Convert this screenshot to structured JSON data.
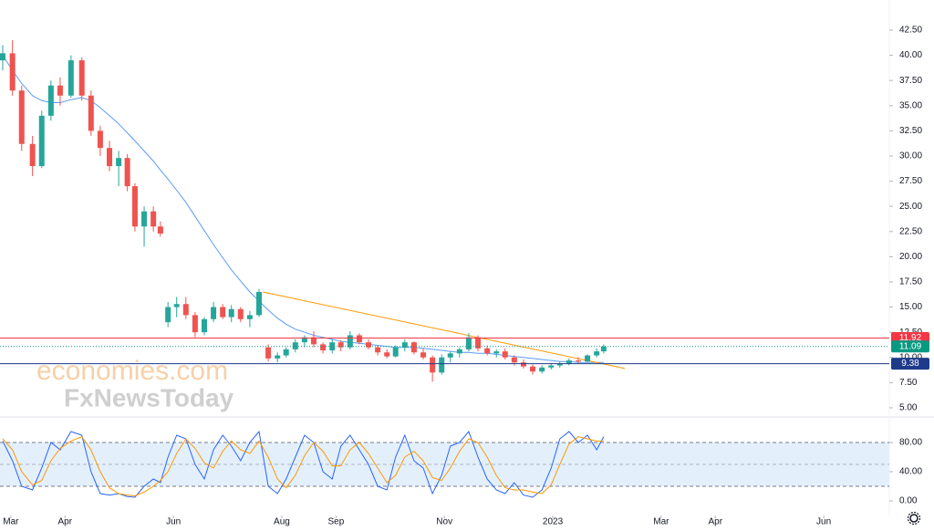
{
  "chart_data": [
    {
      "type": "candlestick",
      "x": [
        2.85,
        3.03,
        3.2,
        3.4,
        3.57,
        3.74,
        3.91,
        4.11,
        4.31,
        4.48,
        4.65,
        4.82,
        4.99,
        5.15,
        5.29,
        5.46,
        5.63,
        5.76,
        5.9,
        6.06,
        6.23,
        6.4,
        6.57,
        6.74,
        6.91,
        7.07,
        7.24,
        7.41,
        7.58,
        7.75,
        7.92,
        8.08,
        8.25,
        8.42,
        8.59,
        8.76,
        8.93,
        9.09,
        9.26,
        9.43,
        9.6,
        9.77,
        9.94,
        10.1,
        10.27,
        10.44,
        10.61,
        10.78,
        10.95,
        11.11,
        11.28,
        11.45,
        11.62,
        11.79,
        11.96,
        12.12,
        12.29,
        12.46,
        12.63,
        12.8,
        12.97,
        13.13,
        13.3,
        13.47,
        13.64,
        13.81,
        13.94
      ],
      "open": [
        39.5,
        40.2,
        36.5,
        31.2,
        29.0,
        34.0,
        37.0,
        36.0,
        39.5,
        36.0,
        32.5,
        30.8,
        29.0,
        29.8,
        27.0,
        23.0,
        24.5,
        23.0,
        13.5,
        15.0,
        15.3,
        14.2,
        12.5,
        13.8,
        15.0,
        14.0,
        14.8,
        13.8,
        14.2,
        11.0,
        9.9,
        10.2,
        10.8,
        11.5,
        12.0,
        11.3,
        10.7,
        11.5,
        11.0,
        12.2,
        11.5,
        11.0,
        10.5,
        10.1,
        11.0,
        11.5,
        10.5,
        10.0,
        8.5,
        10.0,
        10.4,
        10.8,
        12.0,
        10.9,
        10.4,
        10.6,
        10.0,
        9.5,
        9.1,
        8.6,
        9.0,
        9.2,
        9.4,
        9.7,
        9.6,
        10.2,
        10.6
      ],
      "high": [
        41.0,
        41.5,
        37.0,
        32.0,
        34.5,
        37.5,
        37.8,
        40.0,
        39.8,
        36.5,
        33.0,
        31.5,
        30.5,
        30.2,
        27.3,
        25.0,
        25.0,
        23.5,
        15.5,
        16.0,
        16.0,
        14.5,
        14.0,
        15.5,
        15.3,
        15.2,
        15.0,
        14.6,
        16.8,
        11.3,
        10.5,
        11.0,
        11.8,
        12.2,
        12.6,
        11.5,
        11.8,
        11.7,
        12.6,
        12.4,
        11.8,
        11.2,
        10.8,
        11.2,
        11.8,
        11.6,
        10.9,
        10.2,
        10.3,
        10.6,
        11.0,
        12.4,
        12.2,
        11.2,
        10.8,
        10.9,
        10.2,
        9.8,
        9.3,
        9.2,
        9.4,
        9.6,
        9.9,
        10.0,
        10.3,
        10.9,
        11.3
      ],
      "low": [
        38.5,
        36.0,
        30.5,
        28.0,
        28.8,
        33.5,
        35.0,
        35.8,
        35.5,
        32.0,
        30.0,
        28.5,
        27.0,
        26.5,
        22.5,
        21.0,
        22.5,
        22.0,
        13.0,
        14.0,
        13.8,
        12.0,
        12.2,
        13.5,
        13.8,
        13.5,
        13.5,
        13.0,
        14.0,
        9.6,
        9.5,
        10.0,
        10.5,
        11.0,
        11.0,
        10.4,
        10.4,
        10.6,
        10.8,
        11.3,
        10.8,
        10.2,
        9.9,
        10.0,
        10.6,
        10.3,
        9.8,
        7.6,
        8.3,
        9.5,
        10.0,
        10.6,
        10.6,
        10.2,
        10.0,
        9.8,
        9.2,
        8.9,
        8.3,
        8.4,
        8.8,
        9.0,
        9.2,
        9.4,
        9.5,
        10.0,
        10.4
      ],
      "close": [
        40.2,
        36.5,
        31.2,
        29.0,
        34.0,
        37.0,
        36.0,
        39.5,
        36.0,
        32.5,
        30.8,
        29.0,
        29.8,
        27.0,
        23.0,
        24.5,
        23.0,
        22.3,
        15.0,
        15.3,
        14.2,
        12.5,
        13.8,
        15.0,
        14.0,
        14.8,
        13.8,
        14.2,
        16.5,
        9.9,
        10.2,
        10.8,
        11.5,
        12.0,
        11.3,
        10.7,
        11.5,
        11.0,
        12.2,
        11.5,
        11.0,
        10.5,
        10.1,
        11.0,
        11.5,
        10.5,
        10.0,
        8.5,
        10.0,
        10.4,
        10.8,
        12.0,
        10.9,
        10.4,
        10.6,
        10.0,
        9.5,
        9.1,
        8.6,
        9.0,
        9.2,
        9.4,
        9.7,
        9.6,
        10.2,
        10.6,
        11.09
      ],
      "up_color": "#26a69a",
      "down_color": "#ef5350",
      "moving_average": {
        "color": "#5b9cf6",
        "values": [
          40.0,
          38.5,
          37.2,
          36.0,
          35.5,
          35.3,
          35.3,
          35.6,
          35.8,
          35.5,
          34.8,
          34.0,
          33.2,
          32.3,
          31.5,
          30.5,
          29.5,
          28.6,
          27.7,
          26.6,
          25.4,
          24.0,
          22.6,
          21.2,
          19.9,
          18.7,
          17.6,
          16.5,
          15.6,
          14.7,
          13.9,
          13.3,
          12.8,
          12.5,
          12.2,
          12.0,
          11.8,
          11.6,
          11.5,
          11.4,
          11.3,
          11.2,
          11.1,
          11.0,
          11.0,
          11.0,
          10.9,
          10.8,
          10.7,
          10.6,
          10.5,
          10.5,
          10.4,
          10.4,
          10.3,
          10.2,
          10.1,
          10.0,
          9.9,
          9.8,
          9.7,
          9.6,
          9.6,
          9.5,
          9.5,
          9.5,
          9.5
        ]
      },
      "trendline": {
        "color": "#ff9800",
        "x": [
          7.65,
          14.33
        ],
        "values": [
          16.5,
          8.9
        ]
      },
      "levels": [
        {
          "value": 11.92,
          "color": "#f23645",
          "style": "solid"
        },
        {
          "value": 11.09,
          "color": "#089981",
          "style": "dotted"
        },
        {
          "value": 9.38,
          "color": "#1e3a8a",
          "style": "solid"
        }
      ],
      "xlim": [
        2.8,
        19.21
      ],
      "ylim": [
        4.18,
        45.49
      ],
      "yticks": [
        {
          "value": 5,
          "label": "5.00"
        },
        {
          "value": 7.5,
          "label": "7.50"
        },
        {
          "value": 10,
          "label": "10.00"
        },
        {
          "value": 12.5,
          "label": "12.50"
        },
        {
          "value": 15,
          "label": "15.00"
        },
        {
          "value": 17.5,
          "label": "17.50"
        },
        {
          "value": 20,
          "label": "20.00"
        },
        {
          "value": 22.5,
          "label": "22.50"
        },
        {
          "value": 25,
          "label": "25.00"
        },
        {
          "value": 27.5,
          "label": "27.50"
        },
        {
          "value": 30,
          "label": "30.00"
        },
        {
          "value": 32.5,
          "label": "32.50"
        },
        {
          "value": 35,
          "label": "35.00"
        },
        {
          "value": 37.5,
          "label": "37.50"
        },
        {
          "value": 40,
          "label": "40.00"
        },
        {
          "value": 42.5,
          "label": "42.50"
        }
      ],
      "watermark": [
        "economies.com",
        "FxNewsToday"
      ]
    },
    {
      "type": "line",
      "x": [
        2.85,
        3.03,
        3.2,
        3.4,
        3.57,
        3.74,
        3.91,
        4.11,
        4.31,
        4.48,
        4.65,
        4.82,
        4.99,
        5.15,
        5.29,
        5.46,
        5.63,
        5.76,
        5.9,
        6.06,
        6.23,
        6.4,
        6.57,
        6.74,
        6.91,
        7.07,
        7.24,
        7.41,
        7.58,
        7.75,
        7.92,
        8.08,
        8.25,
        8.42,
        8.59,
        8.76,
        8.93,
        9.09,
        9.26,
        9.43,
        9.6,
        9.77,
        9.94,
        10.1,
        10.27,
        10.44,
        10.61,
        10.78,
        10.95,
        11.11,
        11.28,
        11.45,
        11.62,
        11.79,
        11.96,
        12.12,
        12.29,
        12.46,
        12.63,
        12.8,
        12.97,
        13.13,
        13.3,
        13.47,
        13.64,
        13.81,
        13.94
      ],
      "series": [
        {
          "color": "#2962ff",
          "values": [
            82,
            55,
            20,
            15,
            45,
            80,
            70,
            95,
            90,
            40,
            10,
            8,
            10,
            6,
            5,
            20,
            30,
            25,
            60,
            90,
            85,
            50,
            30,
            70,
            90,
            75,
            55,
            80,
            95,
            20,
            10,
            30,
            60,
            90,
            80,
            40,
            30,
            75,
            90,
            70,
            50,
            20,
            15,
            60,
            90,
            55,
            45,
            10,
            35,
            75,
            80,
            95,
            60,
            30,
            15,
            10,
            25,
            8,
            5,
            15,
            45,
            85,
            95,
            80,
            90,
            70,
            88
          ]
        },
        {
          "color": "#ff9800",
          "values": [
            85,
            70,
            40,
            22,
            28,
            55,
            72,
            82,
            88,
            70,
            40,
            18,
            10,
            8,
            7,
            12,
            20,
            28,
            40,
            65,
            85,
            72,
            52,
            45,
            68,
            82,
            70,
            65,
            82,
            60,
            30,
            18,
            35,
            62,
            80,
            68,
            48,
            48,
            70,
            80,
            65,
            45,
            25,
            35,
            60,
            68,
            55,
            32,
            28,
            45,
            68,
            85,
            80,
            60,
            35,
            18,
            15,
            15,
            12,
            10,
            22,
            50,
            78,
            88,
            85,
            82,
            82
          ]
        }
      ],
      "band": [
        20,
        80
      ],
      "band_color": "#e3f0fc",
      "midline": 50,
      "xlim": [
        2.8,
        19.21
      ],
      "ylim": [
        -20,
        113.75
      ],
      "yticks": [
        {
          "value": 0,
          "label": "0.00"
        },
        {
          "value": 40,
          "label": "40.00"
        },
        {
          "value": 80,
          "label": "80.00"
        }
      ],
      "xticks": [
        {
          "value": 3,
          "label": "Mar"
        },
        {
          "value": 4,
          "label": "Apr"
        },
        {
          "value": 6,
          "label": "Jun"
        },
        {
          "value": 8,
          "label": "Aug"
        },
        {
          "value": 9,
          "label": "Sep"
        },
        {
          "value": 11,
          "label": "Nov"
        },
        {
          "value": 13,
          "label": "2023"
        },
        {
          "value": 15,
          "label": "Mar"
        },
        {
          "value": 16,
          "label": "Apr"
        },
        {
          "value": 18,
          "label": "Jun"
        }
      ]
    }
  ]
}
